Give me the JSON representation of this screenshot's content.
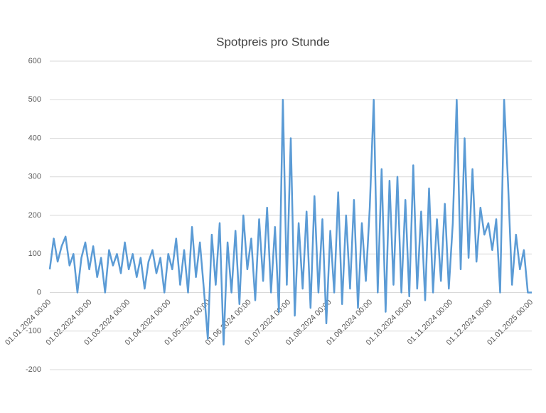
{
  "chart_data": {
    "type": "line",
    "title": "Spotpreis pro Stunde",
    "color": "#5b9bd5",
    "grid": true,
    "xlim": [
      "01.01.2024 00:00",
      "01.01.2025 00:00"
    ],
    "xticks": [
      "01.01.2024 00:00",
      "01.02.2024 00:00",
      "01.03.2024 00:00",
      "01.04.2024 00:00",
      "01.05.2024 00:00",
      "01.06.2024 00:00",
      "01.07.2024 00:00",
      "01.08.2024 00:00",
      "01.09.2024 00:00",
      "01.10.2024 00:00",
      "01.11.2024 00:00",
      "01.12.2024 00:00",
      "01.01.2025 00:00"
    ],
    "ylim": [
      -200,
      600
    ],
    "yticks": [
      -200,
      -100,
      0,
      100,
      200,
      300,
      400,
      500,
      600
    ],
    "x": [
      "01.01.2024 00:00",
      "04.01.2024 00:00",
      "07.01.2024 00:00",
      "10.01.2024 00:00",
      "13.01.2024 00:00",
      "16.01.2024 00:00",
      "19.01.2024 00:00",
      "22.01.2024 00:00",
      "25.01.2024 00:00",
      "28.01.2024 00:00",
      "31.01.2024 00:00",
      "03.02.2024 00:00",
      "06.02.2024 00:00",
      "09.02.2024 00:00",
      "12.02.2024 00:00",
      "15.02.2024 00:00",
      "18.02.2024 00:00",
      "21.02.2024 00:00",
      "24.02.2024 00:00",
      "27.02.2024 00:00",
      "01.03.2024 00:00",
      "04.03.2024 00:00",
      "07.03.2024 00:00",
      "10.03.2024 00:00",
      "13.03.2024 00:00",
      "16.03.2024 00:00",
      "19.03.2024 00:00",
      "22.03.2024 00:00",
      "25.03.2024 00:00",
      "28.03.2024 00:00",
      "31.03.2024 00:00",
      "03.04.2024 00:00",
      "06.04.2024 00:00",
      "09.04.2024 00:00",
      "12.04.2024 00:00",
      "15.04.2024 00:00",
      "18.04.2024 00:00",
      "21.04.2024 00:00",
      "24.04.2024 00:00",
      "27.04.2024 00:00",
      "30.04.2024 00:00",
      "03.05.2024 00:00",
      "06.05.2024 00:00",
      "09.05.2024 00:00",
      "12.05.2024 00:00",
      "15.05.2024 00:00",
      "18.05.2024 00:00",
      "21.05.2024 00:00",
      "24.05.2024 00:00",
      "27.05.2024 00:00",
      "30.05.2024 00:00",
      "02.06.2024 00:00",
      "05.06.2024 00:00",
      "08.06.2024 00:00",
      "11.06.2024 00:00",
      "14.06.2024 00:00",
      "17.06.2024 00:00",
      "20.06.2024 00:00",
      "23.06.2024 00:00",
      "26.06.2024 00:00",
      "29.06.2024 00:00",
      "02.07.2024 00:00",
      "05.07.2024 00:00",
      "08.07.2024 00:00",
      "11.07.2024 00:00",
      "14.07.2024 00:00",
      "17.07.2024 00:00",
      "20.07.2024 00:00",
      "23.07.2024 00:00",
      "26.07.2024 00:00",
      "29.07.2024 00:00",
      "01.08.2024 00:00",
      "04.08.2024 00:00",
      "07.08.2024 00:00",
      "10.08.2024 00:00",
      "13.08.2024 00:00",
      "16.08.2024 00:00",
      "19.08.2024 00:00",
      "22.08.2024 00:00",
      "25.08.2024 00:00",
      "28.08.2024 00:00",
      "31.08.2024 00:00",
      "03.09.2024 00:00",
      "06.09.2024 00:00",
      "09.09.2024 00:00",
      "12.09.2024 00:00",
      "15.09.2024 00:00",
      "18.09.2024 00:00",
      "21.09.2024 00:00",
      "24.09.2024 00:00",
      "27.09.2024 00:00",
      "30.09.2024 00:00",
      "03.10.2024 00:00",
      "06.10.2024 00:00",
      "09.10.2024 00:00",
      "12.10.2024 00:00",
      "15.10.2024 00:00",
      "18.10.2024 00:00",
      "21.10.2024 00:00",
      "24.10.2024 00:00",
      "27.10.2024 00:00",
      "30.10.2024 00:00",
      "02.11.2024 00:00",
      "05.11.2024 00:00",
      "08.11.2024 00:00",
      "11.11.2024 00:00",
      "14.11.2024 00:00",
      "17.11.2024 00:00",
      "20.11.2024 00:00",
      "23.11.2024 00:00",
      "26.11.2024 00:00",
      "29.11.2024 00:00",
      "02.12.2024 00:00",
      "05.12.2024 00:00",
      "08.12.2024 00:00",
      "11.12.2024 00:00",
      "14.12.2024 00:00",
      "17.12.2024 00:00",
      "20.12.2024 00:00",
      "23.12.2024 00:00",
      "26.12.2024 00:00",
      "29.12.2024 00:00",
      "01.01.2025 00:00"
    ],
    "values": [
      60,
      140,
      80,
      120,
      145,
      70,
      100,
      0,
      90,
      130,
      60,
      120,
      40,
      90,
      0,
      110,
      70,
      100,
      50,
      130,
      60,
      100,
      40,
      90,
      10,
      80,
      110,
      50,
      90,
      0,
      100,
      60,
      140,
      20,
      110,
      0,
      170,
      40,
      130,
      10,
      -120,
      150,
      20,
      180,
      -135,
      130,
      0,
      160,
      -30,
      200,
      60,
      140,
      -20,
      190,
      30,
      220,
      0,
      170,
      -50,
      500,
      20,
      400,
      -60,
      180,
      10,
      210,
      -40,
      250,
      0,
      190,
      -80,
      160,
      0,
      260,
      -30,
      200,
      10,
      240,
      -40,
      180,
      30,
      220,
      500,
      0,
      320,
      -50,
      290,
      20,
      300,
      0,
      240,
      -10,
      330,
      10,
      210,
      -20,
      270,
      0,
      190,
      30,
      230,
      10,
      180,
      500,
      60,
      400,
      90,
      320,
      80,
      220,
      150,
      180,
      110,
      190,
      0,
      500,
      280,
      20,
      150,
      60,
      110,
      0,
      0
    ]
  }
}
